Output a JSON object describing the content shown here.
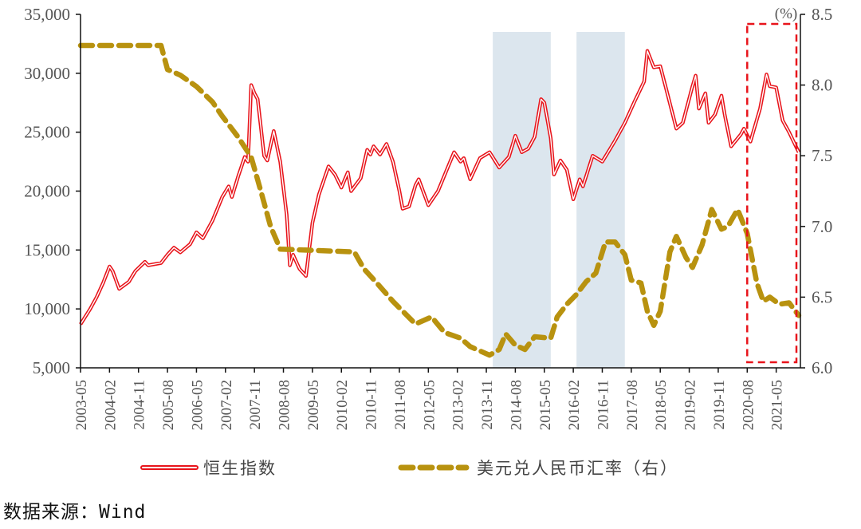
{
  "chart_data": {
    "type": "line",
    "title": "",
    "xlabel": "",
    "ylabel": "",
    "y2label": "(%)",
    "ylim": [
      5000,
      35000
    ],
    "y2lim": [
      6.0,
      8.5
    ],
    "yticks": [
      "5,000",
      "10,000",
      "15,000",
      "20,000",
      "25,000",
      "30,000",
      "35,000"
    ],
    "y2ticks": [
      "6.0",
      "6.5",
      "7.0",
      "7.5",
      "8.0",
      "8.5"
    ],
    "xticks": [
      "2003-05",
      "2004-02",
      "2004-11",
      "2005-08",
      "2006-05",
      "2007-02",
      "2007-11",
      "2008-08",
      "2009-05",
      "2010-02",
      "2010-11",
      "2011-08",
      "2012-05",
      "2013-02",
      "2013-11",
      "2014-08",
      "2015-05",
      "2016-02",
      "2016-11",
      "2017-08",
      "2018-05",
      "2019-02",
      "2019-11",
      "2020-08",
      "2021-05"
    ],
    "grid": false,
    "legend_position": "bottom",
    "shaded_periods": [
      [
        "2014-01",
        "2015-07"
      ],
      [
        "2016-03",
        "2017-06"
      ]
    ],
    "highlight_box": [
      "2020-08",
      "2021-12"
    ],
    "series": [
      {
        "name": "恒生指数",
        "axis": "left",
        "color": "#e8141b",
        "style": "double-line",
        "points": [
          [
            "2003-05",
            8700
          ],
          [
            "2003-08",
            10000
          ],
          [
            "2003-10",
            11000
          ],
          [
            "2003-12",
            12200
          ],
          [
            "2004-02",
            13600
          ],
          [
            "2004-03",
            13200
          ],
          [
            "2004-05",
            11700
          ],
          [
            "2004-08",
            12300
          ],
          [
            "2004-10",
            13200
          ],
          [
            "2005-01",
            14000
          ],
          [
            "2005-02",
            13700
          ],
          [
            "2005-06",
            13900
          ],
          [
            "2005-08",
            14600
          ],
          [
            "2005-10",
            15200
          ],
          [
            "2005-12",
            14800
          ],
          [
            "2006-03",
            15500
          ],
          [
            "2006-05",
            16500
          ],
          [
            "2006-07",
            16000
          ],
          [
            "2006-10",
            17500
          ],
          [
            "2007-01",
            19500
          ],
          [
            "2007-03",
            20400
          ],
          [
            "2007-04",
            19500
          ],
          [
            "2007-06",
            21300
          ],
          [
            "2007-08",
            22900
          ],
          [
            "2007-09",
            22500
          ],
          [
            "2007-10",
            29000
          ],
          [
            "2007-11",
            28300
          ],
          [
            "2007-12",
            27800
          ],
          [
            "2008-02",
            23000
          ],
          [
            "2008-03",
            22600
          ],
          [
            "2008-05",
            25100
          ],
          [
            "2008-07",
            22500
          ],
          [
            "2008-09",
            18000
          ],
          [
            "2008-10",
            13700
          ],
          [
            "2008-11",
            14600
          ],
          [
            "2009-01",
            13400
          ],
          [
            "2009-03",
            12800
          ],
          [
            "2009-05",
            17300
          ],
          [
            "2009-07",
            19700
          ],
          [
            "2009-10",
            22100
          ],
          [
            "2009-12",
            21400
          ],
          [
            "2010-02",
            20300
          ],
          [
            "2010-04",
            21600
          ],
          [
            "2010-05",
            20000
          ],
          [
            "2010-08",
            21100
          ],
          [
            "2010-10",
            23500
          ],
          [
            "2010-11",
            23100
          ],
          [
            "2010-12",
            23800
          ],
          [
            "2011-02",
            23100
          ],
          [
            "2011-04",
            24000
          ],
          [
            "2011-06",
            22500
          ],
          [
            "2011-08",
            20000
          ],
          [
            "2011-09",
            18500
          ],
          [
            "2011-11",
            18700
          ],
          [
            "2012-01",
            20500
          ],
          [
            "2012-02",
            21000
          ],
          [
            "2012-05",
            18800
          ],
          [
            "2012-08",
            20000
          ],
          [
            "2012-11",
            22000
          ],
          [
            "2013-01",
            23300
          ],
          [
            "2013-03",
            22500
          ],
          [
            "2013-04",
            22800
          ],
          [
            "2013-06",
            21000
          ],
          [
            "2013-09",
            22800
          ],
          [
            "2013-12",
            23300
          ],
          [
            "2014-03",
            22000
          ],
          [
            "2014-06",
            22900
          ],
          [
            "2014-08",
            24700
          ],
          [
            "2014-10",
            23300
          ],
          [
            "2014-12",
            23600
          ],
          [
            "2015-02",
            24600
          ],
          [
            "2015-04",
            27800
          ],
          [
            "2015-05",
            27500
          ],
          [
            "2015-07",
            24500
          ],
          [
            "2015-08",
            21400
          ],
          [
            "2015-10",
            22600
          ],
          [
            "2015-12",
            21800
          ],
          [
            "2016-02",
            19300
          ],
          [
            "2016-04",
            21000
          ],
          [
            "2016-05",
            20400
          ],
          [
            "2016-08",
            23000
          ],
          [
            "2016-11",
            22500
          ],
          [
            "2017-01",
            23400
          ],
          [
            "2017-03",
            24300
          ],
          [
            "2017-06",
            25800
          ],
          [
            "2017-09",
            27600
          ],
          [
            "2017-12",
            29300
          ],
          [
            "2018-01",
            31900
          ],
          [
            "2018-03",
            30500
          ],
          [
            "2018-05",
            30600
          ],
          [
            "2018-07",
            28500
          ],
          [
            "2018-10",
            25300
          ],
          [
            "2018-12",
            25800
          ],
          [
            "2019-03",
            28900
          ],
          [
            "2019-04",
            29800
          ],
          [
            "2019-05",
            27000
          ],
          [
            "2019-07",
            28300
          ],
          [
            "2019-08",
            25800
          ],
          [
            "2019-10",
            26500
          ],
          [
            "2019-12",
            28100
          ],
          [
            "2020-01",
            26500
          ],
          [
            "2020-03",
            23800
          ],
          [
            "2020-06",
            24800
          ],
          [
            "2020-07",
            25300
          ],
          [
            "2020-09",
            24200
          ],
          [
            "2020-12",
            27000
          ],
          [
            "2021-02",
            29900
          ],
          [
            "2021-03",
            28900
          ],
          [
            "2021-05",
            28800
          ],
          [
            "2021-07",
            26000
          ],
          [
            "2021-09",
            25000
          ],
          [
            "2021-12",
            23300
          ]
        ]
      },
      {
        "name": "美元兑人民币汇率（右）",
        "axis": "right",
        "color": "#b8920f",
        "style": "dashed",
        "points": [
          [
            "2003-05",
            8.28
          ],
          [
            "2005-06",
            8.28
          ],
          [
            "2005-08",
            8.11
          ],
          [
            "2005-12",
            8.07
          ],
          [
            "2006-05",
            7.99
          ],
          [
            "2006-10",
            7.88
          ],
          [
            "2007-01",
            7.78
          ],
          [
            "2007-06",
            7.63
          ],
          [
            "2007-10",
            7.49
          ],
          [
            "2008-01",
            7.25
          ],
          [
            "2008-04",
            7.0
          ],
          [
            "2008-07",
            6.84
          ],
          [
            "2010-06",
            6.82
          ],
          [
            "2010-09",
            6.7
          ],
          [
            "2011-01",
            6.6
          ],
          [
            "2011-06",
            6.47
          ],
          [
            "2012-01",
            6.31
          ],
          [
            "2012-06",
            6.36
          ],
          [
            "2012-10",
            6.25
          ],
          [
            "2013-03",
            6.21
          ],
          [
            "2013-06",
            6.15
          ],
          [
            "2013-12",
            6.09
          ],
          [
            "2014-03",
            6.13
          ],
          [
            "2014-05",
            6.24
          ],
          [
            "2014-08",
            6.16
          ],
          [
            "2014-11",
            6.13
          ],
          [
            "2015-02",
            6.22
          ],
          [
            "2015-07",
            6.21
          ],
          [
            "2015-09",
            6.36
          ],
          [
            "2015-12",
            6.45
          ],
          [
            "2016-03",
            6.52
          ],
          [
            "2016-06",
            6.61
          ],
          [
            "2016-09",
            6.67
          ],
          [
            "2016-12",
            6.89
          ],
          [
            "2017-03",
            6.89
          ],
          [
            "2017-06",
            6.8
          ],
          [
            "2017-08",
            6.62
          ],
          [
            "2017-11",
            6.6
          ],
          [
            "2018-01",
            6.4
          ],
          [
            "2018-03",
            6.3
          ],
          [
            "2018-05",
            6.4
          ],
          [
            "2018-08",
            6.82
          ],
          [
            "2018-10",
            6.93
          ],
          [
            "2019-01",
            6.78
          ],
          [
            "2019-03",
            6.71
          ],
          [
            "2019-06",
            6.87
          ],
          [
            "2019-09",
            7.12
          ],
          [
            "2019-12",
            6.98
          ],
          [
            "2020-02",
            7.0
          ],
          [
            "2020-05",
            7.12
          ],
          [
            "2020-08",
            6.95
          ],
          [
            "2020-11",
            6.6
          ],
          [
            "2021-01",
            6.47
          ],
          [
            "2021-03",
            6.5
          ],
          [
            "2021-06",
            6.45
          ],
          [
            "2021-09",
            6.46
          ],
          [
            "2021-12",
            6.37
          ]
        ]
      }
    ]
  },
  "source": "数据来源：Wind"
}
